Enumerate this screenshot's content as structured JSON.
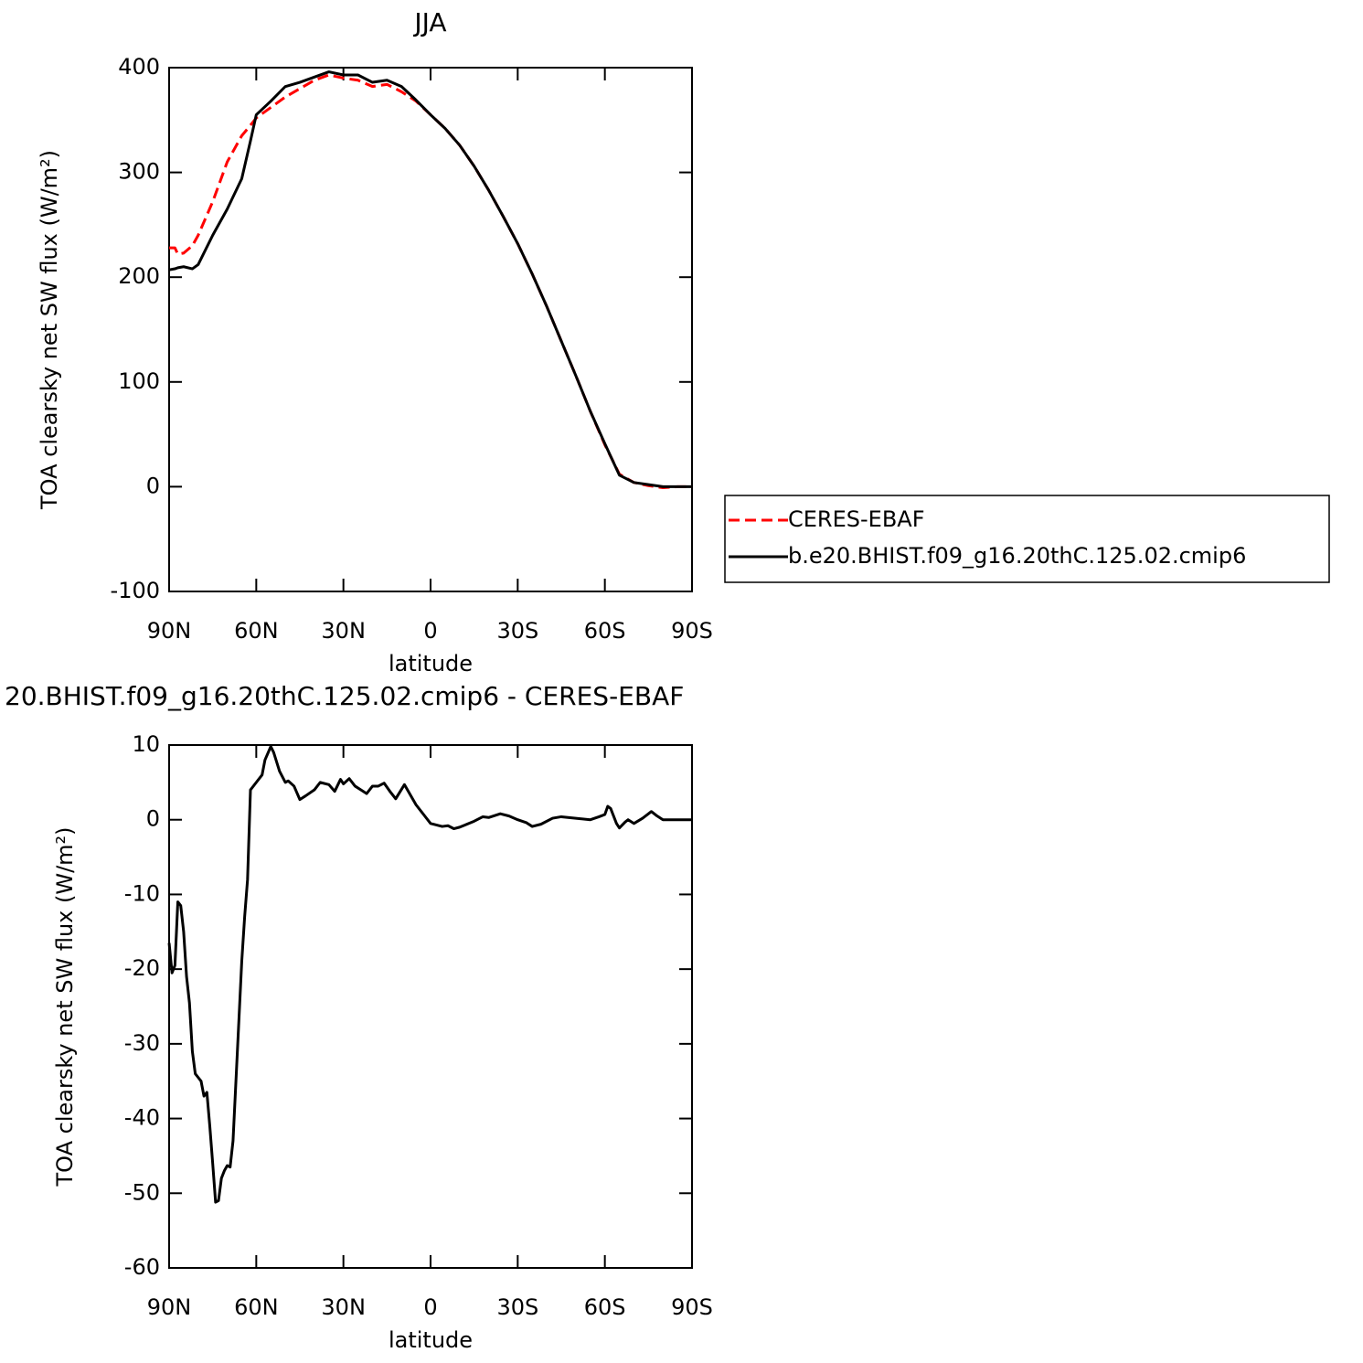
{
  "chart_data": [
    {
      "type": "line",
      "title": "JJA",
      "xlabel": "latitude",
      "ylabel": "TOA clearsky net SW flux (W/m²)",
      "x": [
        90,
        88,
        87,
        85,
        82,
        80,
        75,
        70,
        65,
        62,
        60,
        55,
        50,
        45,
        40,
        35,
        30,
        25,
        20,
        15,
        10,
        5,
        0,
        -5,
        -10,
        -15,
        -20,
        -25,
        -30,
        -35,
        -40,
        -45,
        -50,
        -55,
        -60,
        -65,
        -70,
        -75,
        -80,
        -85,
        -90
      ],
      "series": [
        {
          "name": "CERES-EBAF",
          "color": "#ff0000",
          "style": "dashed",
          "values": [
            228,
            228,
            222,
            223,
            230,
            240,
            272,
            310,
            335,
            345,
            352,
            362,
            372,
            380,
            388,
            393,
            390,
            388,
            382,
            384,
            377,
            368,
            355,
            342,
            326,
            306,
            283,
            258,
            232,
            203,
            172,
            139,
            106,
            72,
            40,
            12,
            4,
            1,
            -1,
            0,
            0
          ]
        },
        {
          "name": "b.e20.BHIST.f09_g16.20thC.125.02.cmip6",
          "color": "#000000",
          "style": "solid",
          "values": [
            207,
            208,
            209,
            210,
            208,
            212,
            240,
            265,
            294,
            330,
            355,
            368,
            382,
            386,
            391,
            396,
            393,
            393,
            386,
            388,
            382,
            369,
            355,
            342,
            326,
            306,
            283,
            258,
            232,
            203,
            172,
            139,
            106,
            72,
            41,
            11,
            4,
            2,
            0,
            0,
            0
          ]
        }
      ],
      "xlim": [
        90,
        -90
      ],
      "xticks": [
        {
          "value": 90,
          "label": "90N"
        },
        {
          "value": 60,
          "label": "60N"
        },
        {
          "value": 30,
          "label": "30N"
        },
        0,
        {
          "value": -30,
          "label": "30S"
        },
        {
          "value": -60,
          "label": "60S"
        },
        {
          "value": -90,
          "label": "90S"
        }
      ],
      "ylim": [
        -100,
        400
      ],
      "yticks": [
        -100,
        0,
        100,
        200,
        300,
        400
      ],
      "legend": "right"
    },
    {
      "type": "line",
      "title": "20.BHIST.f09_g16.20thC.125.02.cmip6 - CERES-EBAF",
      "xlabel": "latitude",
      "ylabel": "TOA clearsky net SW flux (W/m²)",
      "x": [
        90,
        89,
        88,
        87,
        86,
        85,
        84,
        83,
        82,
        81,
        80,
        79,
        78,
        77,
        76,
        75,
        74,
        73,
        72,
        71,
        70,
        69,
        68,
        67,
        66,
        65,
        64,
        63,
        62,
        60,
        58,
        57,
        55,
        54,
        52,
        50,
        49,
        47,
        45,
        43,
        40,
        38,
        35,
        33,
        31,
        30,
        28,
        26,
        24,
        22,
        20,
        18,
        16,
        14,
        12,
        9,
        5,
        2,
        0,
        -4,
        -6,
        -8,
        -10,
        -15,
        -18,
        -20,
        -24,
        -27,
        -30,
        -33,
        -35,
        -38,
        -42,
        -45,
        -50,
        -55,
        -58,
        -60,
        -61,
        -62,
        -64,
        -65,
        -67,
        -68,
        -70,
        -73,
        -76,
        -78,
        -80,
        -85,
        -90
      ],
      "series": [
        {
          "color": "#000000",
          "style": "solid",
          "values": [
            -16.5,
            -20.5,
            -19.5,
            -11,
            -11.5,
            -15,
            -21,
            -24.5,
            -31,
            -34,
            -34.5,
            -35,
            -37,
            -36.5,
            -41,
            -46,
            -51.2,
            -51,
            -48,
            -47,
            -46.3,
            -46.5,
            -43,
            -35,
            -27,
            -19,
            -13,
            -8,
            4,
            5,
            6,
            8,
            9.8,
            9,
            6.5,
            5,
            5.2,
            4.5,
            2.7,
            3.2,
            4,
            5,
            4.7,
            3.8,
            5.4,
            4.8,
            5.5,
            4.5,
            4,
            3.5,
            4.5,
            4.5,
            4.9,
            3.8,
            2.8,
            4.7,
            2,
            0.5,
            -0.5,
            -0.9,
            -0.8,
            -1.2,
            -1,
            -0.2,
            0.4,
            0.3,
            0.8,
            0.5,
            0,
            -0.4,
            -0.9,
            -0.6,
            0.2,
            0.4,
            0.2,
            0,
            0.4,
            0.7,
            1.8,
            1.5,
            -0.5,
            -1.1,
            -0.3,
            0,
            -0.5,
            0.2,
            1.1,
            0.5,
            0,
            0,
            0
          ]
        }
      ],
      "xlim": [
        90,
        -90
      ],
      "xticks": [
        {
          "value": 90,
          "label": "90N"
        },
        {
          "value": 60,
          "label": "60N"
        },
        {
          "value": 30,
          "label": "30N"
        },
        0,
        {
          "value": -30,
          "label": "30S"
        },
        {
          "value": -60,
          "label": "60S"
        },
        {
          "value": -90,
          "label": "90S"
        }
      ],
      "ylim": [
        -60,
        10
      ],
      "yticks": [
        -60,
        -50,
        -40,
        -30,
        -20,
        -10,
        0,
        10
      ]
    }
  ]
}
